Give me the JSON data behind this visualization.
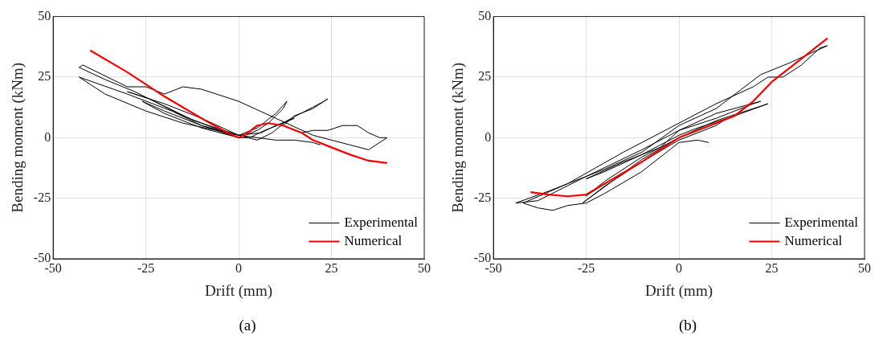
{
  "chart_data": [
    {
      "type": "line",
      "xlabel": "Drift (mm)",
      "ylabel": "Bending moment (kNm)",
      "xlim": [
        -50,
        50
      ],
      "ylim": [
        -50,
        50
      ],
      "xticks": [
        -50,
        -25,
        0,
        25,
        50
      ],
      "yticks": [
        -50,
        -25,
        0,
        25,
        50
      ],
      "grid": true,
      "legend": "bottom right",
      "annotations": [
        "(a)"
      ],
      "series": [
        {
          "name": "Experimental",
          "color": "#000000",
          "x": [
            0,
            -10,
            -20,
            -26,
            -20,
            -10,
            0,
            5,
            8,
            12,
            13,
            10,
            5,
            0,
            -12,
            -24,
            -30,
            -20,
            -10,
            0,
            6,
            10,
            15,
            12,
            7,
            3,
            0,
            -15,
            -28,
            -36,
            -43,
            -42,
            -30,
            -25,
            -20,
            -15,
            -10,
            0,
            10,
            20,
            25,
            30,
            35,
            40,
            38,
            35,
            32,
            28,
            24,
            20,
            17,
            15,
            12,
            15,
            20,
            24,
            23,
            18,
            13,
            9,
            5,
            0,
            -15,
            -25,
            -36,
            -43,
            -30,
            -18,
            -10,
            0,
            5,
            10,
            15,
            20,
            22
          ],
          "values": [
            0,
            5,
            11,
            15,
            10,
            4,
            0,
            3,
            6,
            12,
            15,
            10,
            4,
            1,
            7,
            16,
            19,
            14,
            8,
            1,
            2,
            5,
            8,
            6,
            3,
            0,
            0,
            9,
            19,
            24,
            29,
            30,
            21,
            21,
            18,
            21,
            20,
            15,
            8,
            1,
            -1,
            -3,
            -5,
            0,
            0,
            2,
            5,
            5,
            3,
            3,
            2,
            3,
            5,
            9,
            12,
            16,
            15,
            11,
            7,
            2,
            -1,
            1,
            6,
            11,
            18,
            25,
            18,
            11,
            5,
            1,
            0,
            -1,
            -1,
            -2,
            -3
          ]
        },
        {
          "name": "Numerical",
          "color": "#ff0000",
          "x": [
            -40,
            -30,
            -20,
            -10,
            -3,
            0,
            2,
            5,
            8,
            12,
            17,
            20,
            25,
            30,
            35,
            40
          ],
          "values": [
            36,
            27,
            17,
            8,
            2,
            0,
            1.5,
            5,
            6,
            5,
            2,
            -1,
            -4,
            -7,
            -9.5,
            -10.5
          ]
        }
      ]
    },
    {
      "type": "line",
      "xlabel": "Drift (mm)",
      "ylabel": "Bending moment (kNm)",
      "xlim": [
        -50,
        50
      ],
      "ylim": [
        -50,
        50
      ],
      "xticks": [
        -50,
        -25,
        0,
        25,
        50
      ],
      "yticks": [
        -50,
        -25,
        0,
        25,
        50
      ],
      "grid": true,
      "legend": "bottom right",
      "annotations": [
        "(b)"
      ],
      "series": [
        {
          "name": "Experimental",
          "color": "#000000",
          "x": [
            0,
            -10,
            -20,
            -25,
            -20,
            -10,
            0,
            10,
            12,
            5,
            0,
            -10,
            -26,
            -20,
            -10,
            0,
            10,
            20,
            24,
            15,
            5,
            0,
            -10,
            -20,
            -25,
            -15,
            -5,
            0,
            10,
            20,
            22,
            10,
            0,
            -10,
            -25,
            -38,
            -44,
            -35,
            -20,
            -10,
            0,
            10,
            22,
            30,
            40,
            38,
            33,
            28,
            24,
            20,
            10,
            0,
            -15,
            -30,
            -42,
            -38,
            -34,
            -30,
            -25,
            -20,
            -10,
            0,
            5,
            8
          ],
          "values": [
            0,
            -8,
            -18,
            -24,
            -19,
            -10,
            -1,
            5,
            7,
            3,
            0,
            -9,
            -27,
            -20,
            -10,
            0,
            7,
            12,
            14,
            9,
            4,
            1,
            -7,
            -14,
            -17,
            -10,
            -4,
            3,
            8,
            14,
            15,
            10,
            3,
            -5,
            -16,
            -26,
            -27,
            -22,
            -13,
            -6,
            5,
            12,
            26,
            31,
            38,
            37,
            30,
            25,
            25,
            21,
            14,
            6,
            -6,
            -19,
            -27,
            -29,
            -30,
            -28,
            -27,
            -23,
            -14,
            -2,
            -1,
            -2
          ]
        },
        {
          "name": "Numerical",
          "color": "#ff0000",
          "x": [
            -40,
            -35,
            -30,
            -25,
            -20,
            -10,
            -5,
            0,
            5,
            10,
            15,
            20,
            25,
            30,
            35,
            40
          ],
          "values": [
            -22.5,
            -23.5,
            -24.2,
            -23.5,
            -19,
            -10,
            -5,
            0,
            3,
            6,
            9,
            15,
            23,
            29,
            35,
            41
          ]
        }
      ]
    }
  ]
}
